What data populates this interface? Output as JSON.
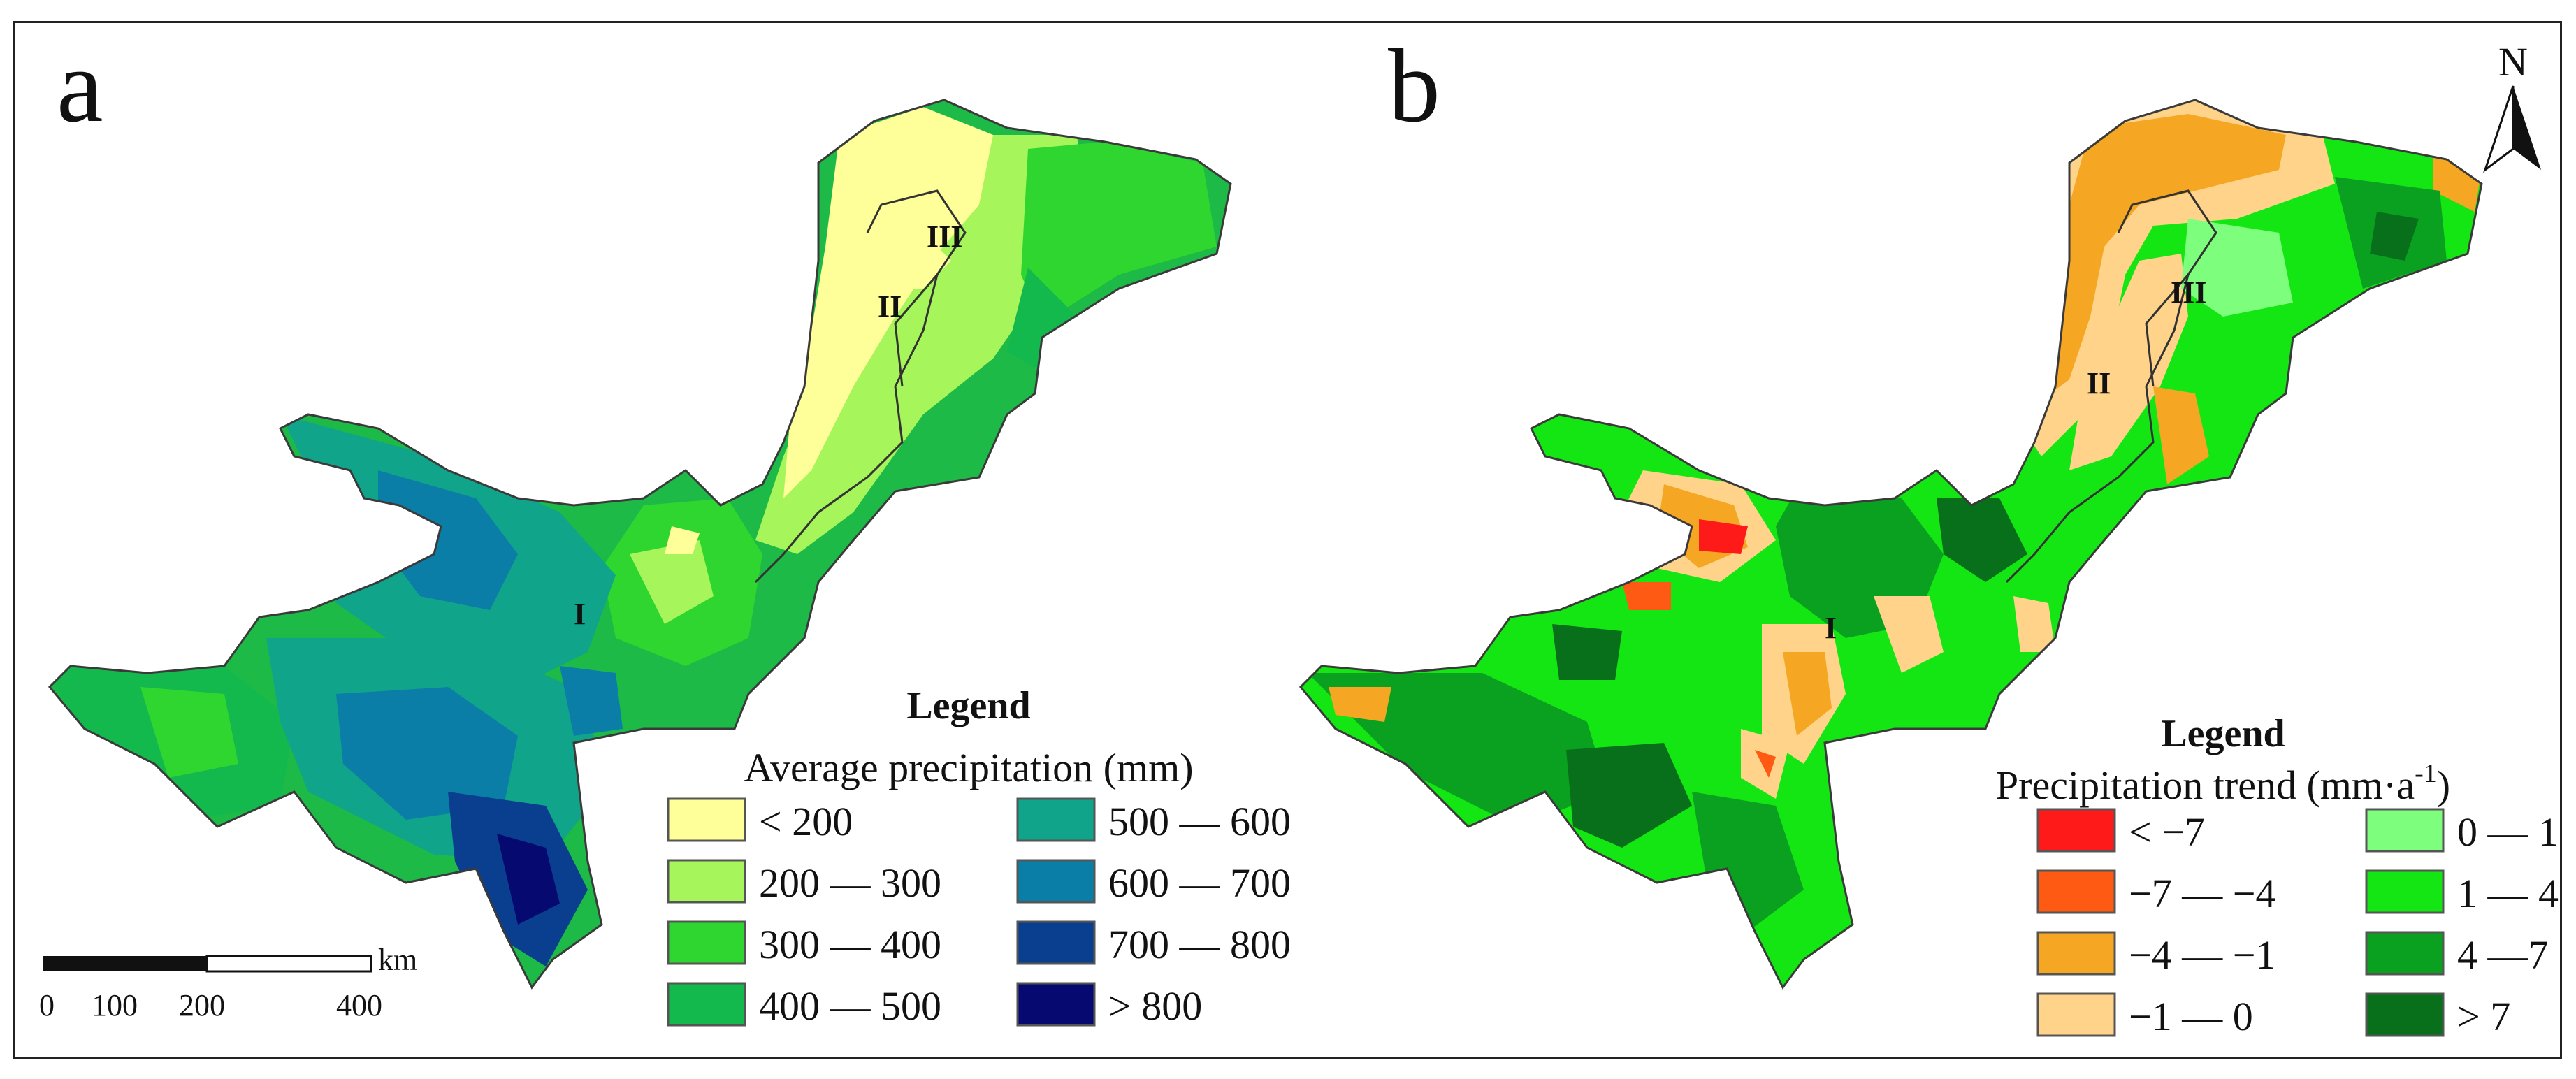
{
  "panel_a": {
    "letter": "a",
    "regions": [
      "I",
      "II",
      "III"
    ],
    "legend": {
      "title": "Legend",
      "subtitle": "Average precipitation (mm)",
      "items": [
        {
          "label": "< 200",
          "color": "#ffff99"
        },
        {
          "label": "200 — 300",
          "color": "#a6f55a"
        },
        {
          "label": "300 — 400",
          "color": "#2fd62f"
        },
        {
          "label": "400 — 500",
          "color": "#14b94d"
        },
        {
          "label": "500 — 600",
          "color": "#10a48a"
        },
        {
          "label": "600 — 700",
          "color": "#0b7ea8"
        },
        {
          "label": "700 — 800",
          "color": "#0a3f8f"
        },
        {
          "label": "> 800",
          "color": "#060a70"
        }
      ]
    },
    "scale_bar": {
      "unit": "km",
      "ticks": [
        "0",
        "100",
        "200",
        "400"
      ]
    }
  },
  "panel_b": {
    "letter": "b",
    "regions": [
      "I",
      "II",
      "III"
    ],
    "north": "N",
    "legend": {
      "title": "Legend",
      "subtitle": "Precipitation trend (mm·a",
      "subtitle_sup": "-1",
      "subtitle_end": ")",
      "items": [
        {
          "label": "< −7",
          "color": "#ff1a1a"
        },
        {
          "label": "−7 — −4",
          "color": "#ff5a14"
        },
        {
          "label": "−4 — −1",
          "color": "#f5a623"
        },
        {
          "label": "−1 — 0",
          "color": "#ffd38a"
        },
        {
          "label": "0 — 1",
          "color": "#7dff7d"
        },
        {
          "label": "1 — 4",
          "color": "#14e614"
        },
        {
          "label": "4 —7",
          "color": "#0aa020"
        },
        {
          "label": "> 7",
          "color": "#08701a"
        }
      ]
    }
  }
}
